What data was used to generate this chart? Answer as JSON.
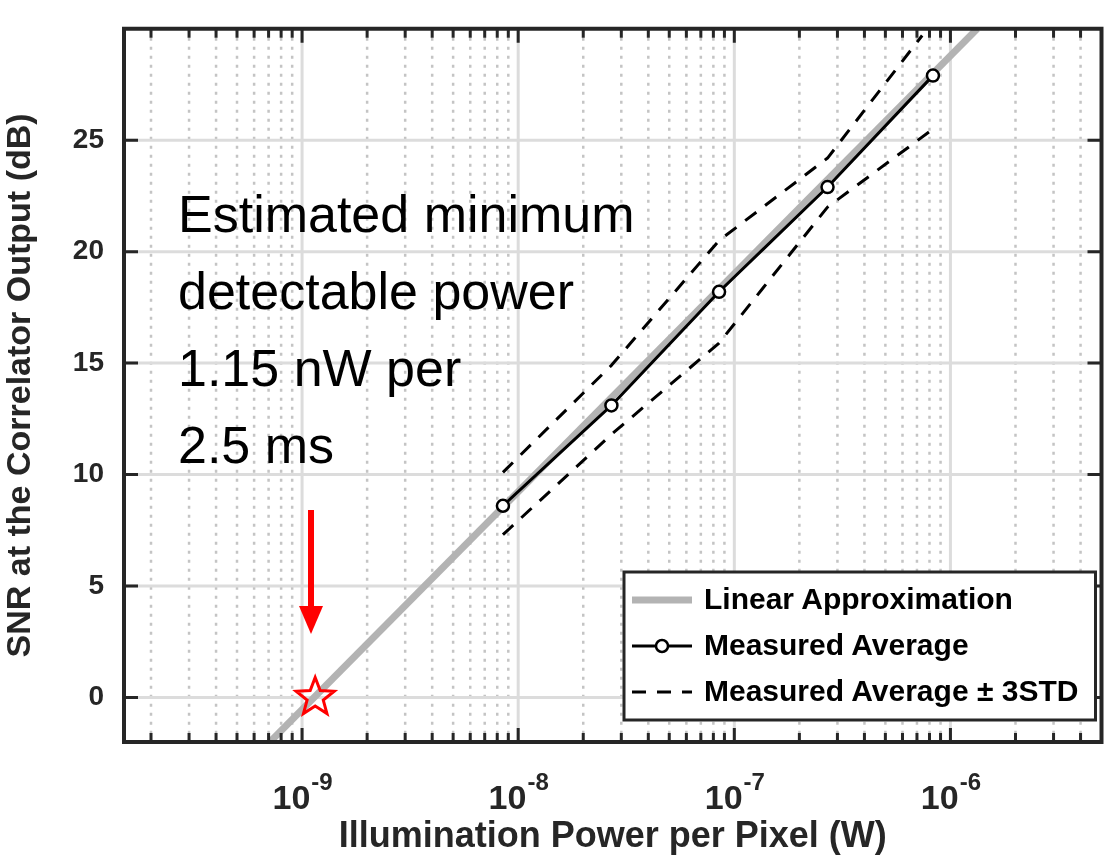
{
  "chart_data": {
    "type": "line",
    "xlabel": "Illumination Power per Pixel (W)",
    "ylabel": "SNR at the Correlator Output (dB)",
    "log": "x",
    "xlim": [
      1.5e-10,
      5e-06
    ],
    "xticks": [
      {
        "value": 2e-10,
        "label": null
      },
      {
        "value": 3e-10,
        "label": null
      },
      {
        "value": 4e-10,
        "label": null
      },
      {
        "value": 5e-10,
        "label": null
      },
      {
        "value": 6e-10,
        "label": null
      },
      {
        "value": 7e-10,
        "label": null
      },
      {
        "value": 8e-10,
        "label": null
      },
      {
        "value": 9e-10,
        "label": null
      },
      {
        "value": 1e-09,
        "label": "10$^{-9}$"
      },
      {
        "value": 2e-09,
        "label": null
      },
      {
        "value": 3e-09,
        "label": null
      },
      {
        "value": 4e-09,
        "label": null
      },
      {
        "value": 5e-09,
        "label": null
      },
      {
        "value": 6e-09,
        "label": null
      },
      {
        "value": 7e-09,
        "label": null
      },
      {
        "value": 8e-09,
        "label": null
      },
      {
        "value": 9e-09,
        "label": null
      },
      {
        "value": 1e-08,
        "label": "10$^{-8}$"
      },
      {
        "value": 2e-08,
        "label": null
      },
      {
        "value": 3e-08,
        "label": null
      },
      {
        "value": 4e-08,
        "label": null
      },
      {
        "value": 5e-08,
        "label": null
      },
      {
        "value": 6e-08,
        "label": null
      },
      {
        "value": 7e-08,
        "label": null
      },
      {
        "value": 8e-08,
        "label": null
      },
      {
        "value": 9e-08,
        "label": null
      },
      {
        "value": 1e-07,
        "label": "10$^{-7}$"
      },
      {
        "value": 2e-07,
        "label": null
      },
      {
        "value": 3e-07,
        "label": null
      },
      {
        "value": 4e-07,
        "label": null
      },
      {
        "value": 5e-07,
        "label": null
      },
      {
        "value": 6e-07,
        "label": null
      },
      {
        "value": 7e-07,
        "label": null
      },
      {
        "value": 8e-07,
        "label": null
      },
      {
        "value": 9e-07,
        "label": null
      },
      {
        "value": 1e-06,
        "label": "10$^{-6}$"
      },
      {
        "value": 2e-06,
        "label": null
      },
      {
        "value": 3e-06,
        "label": null
      },
      {
        "value": 4e-06,
        "label": null
      }
    ],
    "ylim": [
      -2,
      30
    ],
    "yticks": [
      0,
      5,
      10,
      15,
      20,
      25
    ],
    "grid": true,
    "legend": "bottom right",
    "annotations": [
      "Estimated minimum\ndetectable power\n1.15 nW per\n2.5 ms"
    ],
    "series": [
      {
        "name": "Linear Approximation",
        "color": "#b3b3b3",
        "marker": "none",
        "line_style": "solid",
        "x": [
          7.1e-10,
          1.33e-06
        ],
        "values": [
          -2,
          30
        ]
      },
      {
        "name": "Measured Average",
        "color": "#000000",
        "marker": "circle",
        "line_style": "solid",
        "x": [
          8.5e-09,
          2.7e-08,
          8.5e-08,
          2.7e-07,
          8.3e-07
        ],
        "values": [
          8.6,
          13.1,
          18.2,
          22.9,
          27.9
        ]
      },
      {
        "name": "Measured Average ± 3STD",
        "color": "#000000",
        "marker": "none",
        "line_style": "dashed",
        "x": [
          8.5e-09,
          2.7e-08,
          8.5e-08,
          2.7e-07,
          7.4e-07
        ],
        "values": [
          10.1,
          14.9,
          20.5,
          24.2,
          29.7
        ]
      },
      {
        "color": "#000000",
        "marker": "none",
        "line_style": "dashed",
        "x": [
          8.5e-09,
          2.7e-08,
          8.5e-08,
          2.7e-07,
          8.3e-07
        ],
        "values": [
          7.3,
          11.8,
          15.9,
          22.0,
          25.5
        ]
      },
      {
        "type": "scatter",
        "color": "#ff0000",
        "marker": "star",
        "x": [
          1.15e-09
        ],
        "values": [
          0
        ]
      }
    ]
  }
}
